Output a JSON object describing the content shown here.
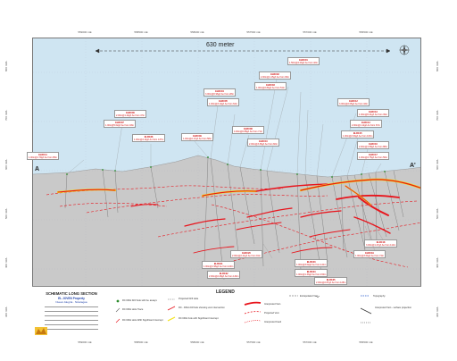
{
  "coords": {
    "top": [
      "559000 mE",
      "558500 mE",
      "558000 mE",
      "557500 mE",
      "557000 mE",
      "556500 mE"
    ],
    "bottom": [
      "559000 mE",
      "558500 mE",
      "558000 mE",
      "557500 mE",
      "557000 mE",
      "556500 mE"
    ],
    "left": [
      "800 mRL",
      "700 mRL",
      "600 mRL",
      "500 mRL",
      "400 mRL",
      "300 mRL"
    ],
    "right": [
      "800 mRL",
      "700 mRL",
      "600 mRL",
      "500 mRL",
      "400 mRL",
      "300 mRL"
    ]
  },
  "scale_label": "630 meter",
  "section": {
    "left_tag": "A",
    "right_tag": "A'"
  },
  "drill_labels": [
    {
      "hole": "ELRC01",
      "text": "1.50m@4.23g/t Au from 42m"
    },
    {
      "hole": "ELRC02",
      "text": "2.00m@1.15g/t Au from 36m"
    },
    {
      "hole": "ELRC03",
      "text": "1.00m@2.84g/t Au from 51m"
    },
    {
      "hole": "ELRC04",
      "text": "3.00m@0.96g/t Au from 28m"
    },
    {
      "hole": "ELRC05",
      "text": "1.00m@3.10g/t Au from 64m"
    },
    {
      "hole": "ELRC06",
      "text": "2.00m@1.42g/t Au from 47m"
    },
    {
      "hole": "ELRC07",
      "text": "1.00m@5.02g/t Au from 33m"
    },
    {
      "hole": "ELRC08",
      "text": "4.00m@0.88g/t Au from 71m"
    },
    {
      "hole": "ELRC09",
      "text": "1.00m@2.17g/t Au from 58m"
    },
    {
      "hole": "ELRC10",
      "text": "2.00m@3.36g/t Au from 82m"
    },
    {
      "hole": "ELRC11",
      "text": "1.00m@1.79g/t Au from 95m"
    },
    {
      "hole": "ELRC12",
      "text": "3.00m@2.05g/t Au from 44m"
    },
    {
      "hole": "ELRC13",
      "text": "1.00m@6.41g/t Au from 39m"
    },
    {
      "hole": "ELRC14",
      "text": "2.00m@1.11g/t Au from 67m"
    },
    {
      "hole": "ELRC15",
      "text": "1.00m@2.93g/t Au from 103m"
    },
    {
      "hole": "ELRC16",
      "text": "2.00m@1.58g/t Au from 88m"
    },
    {
      "hole": "ELRC17",
      "text": "1.00m@4.75g/t Au from 56m"
    },
    {
      "hole": "ELRC18",
      "text": "3.00m@1.27g/t Au from 112m"
    },
    {
      "hole": "ELRC19",
      "text": "1.00m@3.64g/t Au from 74m"
    },
    {
      "hole": "ELRC20",
      "text": "2.00m@2.21g/t Au from 91m"
    },
    {
      "hole": "ELRC21",
      "text": "1.00m@1.96g/t Au from 120m"
    },
    {
      "hole": "ELRC22",
      "text": "2.00m@2.48g/t Au from 132m"
    },
    {
      "hole": "ELRC23",
      "text": "1.00m@3.02g/t Au from 141m"
    },
    {
      "hole": "ELRC24",
      "text": "1.00m@1.33g/t Au from 150m"
    },
    {
      "hole": "ELRC25",
      "text": "2.00m@2.87g/t Au from 128m"
    },
    {
      "hole": "ELRC26",
      "text": "1.00m@4.11g/t Au from 137m"
    }
  ],
  "title_block": {
    "title": "SCHEMATIC LONG SECTION",
    "property": "EL JOVEN Property",
    "subtitle": "Nuevo Alegría · Nicaragua"
  },
  "legend": {
    "title": "LEGEND",
    "items": [
      "RC DDH Drill hole with Au assays",
      "RC DDH Hole Trace",
      "RC DDH Hole With Significant Intercept",
      "Projected Drill Hole",
      "RC - DDH drill hole showing vein intersection",
      "RC DDH hole with Significant Intercept",
      "Interpreted Vein",
      "Projected Vein",
      "Interpreted Fault",
      "Extrapolated Vein",
      "Interpreted Vein - surface projection",
      "Topography"
    ]
  },
  "colors": {
    "sky": "#cfe5f2",
    "rock": "#c8c8c8",
    "vein": "#e8141c",
    "vein_glow": "#f2e218"
  }
}
